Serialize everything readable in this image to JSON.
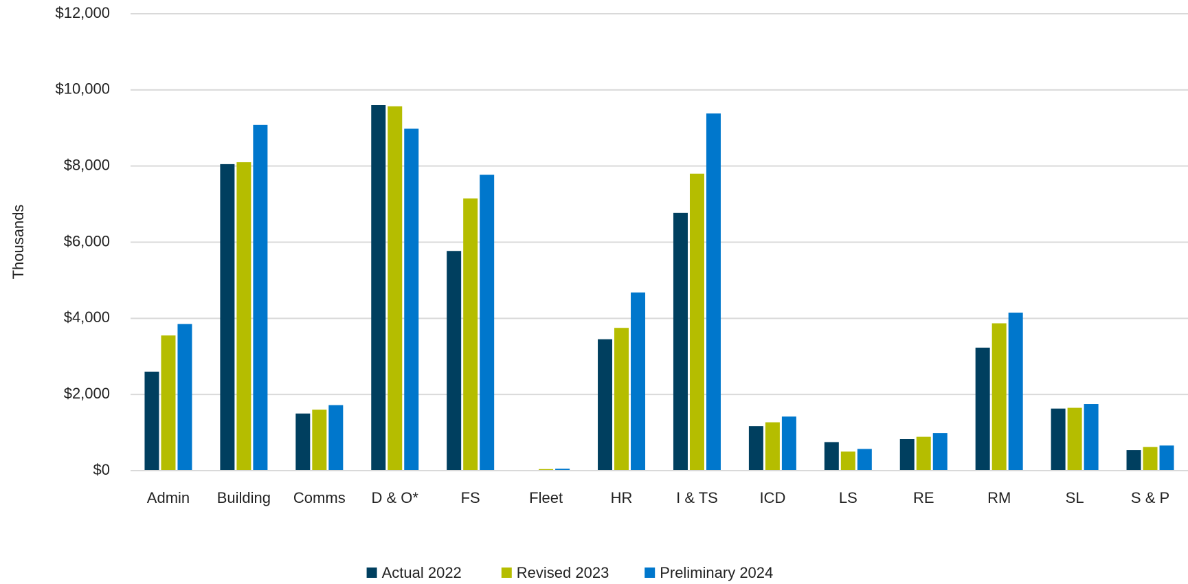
{
  "chart_data": {
    "type": "bar",
    "y_axis_label": "Thousands",
    "categories": [
      "Admin",
      "Building",
      "Comms",
      "D & O*",
      "FS",
      "Fleet",
      "HR",
      "I & TS",
      "ICD",
      "LS",
      "RE",
      "RM",
      "SL",
      "S & P"
    ],
    "series": [
      {
        "name": "Actual 2022",
        "color": "#003f5f",
        "values": [
          2600,
          8050,
          1500,
          9600,
          5770,
          0,
          3450,
          6770,
          1170,
          750,
          830,
          3230,
          1630,
          540
        ]
      },
      {
        "name": "Revised 2023",
        "color": "#b5bd00",
        "values": [
          3550,
          8100,
          1600,
          9570,
          7150,
          40,
          3750,
          7800,
          1270,
          500,
          890,
          3870,
          1650,
          620
        ]
      },
      {
        "name": "Preliminary 2024",
        "color": "#0077cc",
        "values": [
          3850,
          9080,
          1720,
          8980,
          7770,
          50,
          4680,
          9380,
          1420,
          570,
          990,
          4150,
          1750,
          660
        ]
      }
    ],
    "ylim": [
      0,
      12000
    ],
    "yticks": [
      {
        "value": 0,
        "label": "$0"
      },
      {
        "value": 2000,
        "label": "$2,000"
      },
      {
        "value": 4000,
        "label": "$4,000"
      },
      {
        "value": 6000,
        "label": "$6,000"
      },
      {
        "value": 8000,
        "label": "$8,000"
      },
      {
        "value": 10000,
        "label": "$10,000"
      },
      {
        "value": 12000,
        "label": "$12,000"
      }
    ],
    "grid": true,
    "legend": "bottom"
  }
}
